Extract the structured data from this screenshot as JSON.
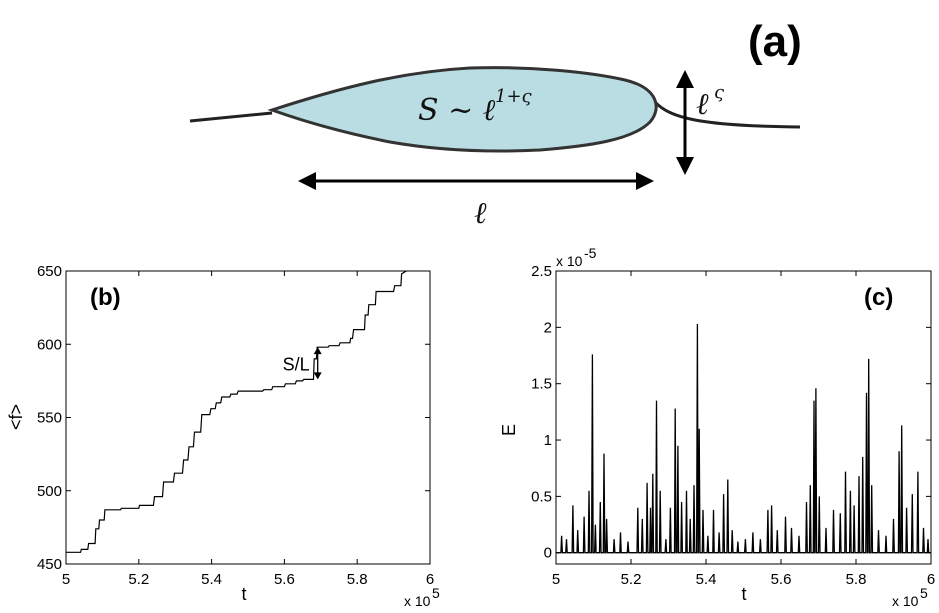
{
  "panel_a": {
    "label": "(a)",
    "area_formula": "S ~ ℓ",
    "area_exponent": "1+ς",
    "width_symbol": "ℓ",
    "width_exponent": "ς",
    "length_symbol": "ℓ",
    "blob_color": "#b9dde2"
  },
  "chart_data": [
    {
      "id": "b",
      "type": "line",
      "panel_label": "(b)",
      "xlabel": "t",
      "ylabel": "<f>",
      "x_multiplier_text": "x 10",
      "x_multiplier_exp": "5",
      "xlim": [
        5.0,
        6.0
      ],
      "ylim": [
        450,
        650
      ],
      "xticks": [
        5.0,
        5.2,
        5.4,
        5.6,
        5.8,
        6.0
      ],
      "xtick_labels": [
        "5",
        "5.2",
        "5.4",
        "5.6",
        "5.8",
        "6"
      ],
      "yticks": [
        450,
        500,
        550,
        600,
        650
      ],
      "ytick_labels": [
        "450",
        "500",
        "550",
        "600",
        "650"
      ],
      "annotation": "S/L",
      "annotation_x": 5.675,
      "annotation_range": [
        576,
        598
      ],
      "x": [
        5.0,
        5.04,
        5.042,
        5.06,
        5.062,
        5.08,
        5.082,
        5.09,
        5.092,
        5.105,
        5.107,
        5.15,
        5.152,
        5.2,
        5.202,
        5.24,
        5.243,
        5.265,
        5.268,
        5.295,
        5.298,
        5.32,
        5.323,
        5.335,
        5.338,
        5.35,
        5.353,
        5.37,
        5.373,
        5.395,
        5.398,
        5.41,
        5.413,
        5.425,
        5.428,
        5.45,
        5.453,
        5.47,
        5.473,
        5.54,
        5.543,
        5.565,
        5.568,
        5.6,
        5.603,
        5.63,
        5.633,
        5.65,
        5.653,
        5.68,
        5.682,
        5.688,
        5.69,
        5.72,
        5.723,
        5.75,
        5.753,
        5.78,
        5.782,
        5.787,
        5.79,
        5.82,
        5.822,
        5.83,
        5.832,
        5.85,
        5.852,
        5.9,
        5.903,
        5.92,
        5.922,
        5.935
      ],
      "y": [
        458,
        458,
        460,
        460,
        464,
        464,
        474,
        474,
        480,
        480,
        487,
        487,
        488,
        488,
        490,
        490,
        496,
        496,
        506,
        506,
        512,
        512,
        521,
        521,
        530,
        530,
        540,
        540,
        552,
        552,
        556,
        556,
        560,
        560,
        564,
        564,
        566,
        566,
        568,
        568,
        569,
        569,
        571,
        571,
        573,
        573,
        575,
        575,
        576,
        576,
        590,
        590,
        598,
        598,
        599,
        599,
        601,
        601,
        604,
        604,
        610,
        610,
        620,
        620,
        627,
        627,
        636,
        636,
        640,
        640,
        648,
        652
      ]
    },
    {
      "id": "c",
      "type": "line",
      "panel_label": "(c)",
      "xlabel": "t",
      "ylabel": "E",
      "x_multiplier_text": "x 10",
      "x_multiplier_exp": "5",
      "y_multiplier_text": "x 10",
      "y_multiplier_exp": "-5",
      "xlim": [
        5.0,
        6.0
      ],
      "ylim": [
        -0.1,
        2.5
      ],
      "xticks": [
        5.0,
        5.2,
        5.4,
        5.6,
        5.8,
        6.0
      ],
      "xtick_labels": [
        "5",
        "5.2",
        "5.4",
        "5.6",
        "5.8",
        "6"
      ],
      "yticks": [
        0,
        0.5,
        1.0,
        1.5,
        2.0,
        2.5
      ],
      "ytick_labels": [
        "0",
        "0.5",
        "1",
        "1.5",
        "2",
        "2.5"
      ],
      "peaks": [
        {
          "t": 5.015,
          "E": 0.15
        },
        {
          "t": 5.028,
          "E": 0.12
        },
        {
          "t": 5.045,
          "E": 0.42
        },
        {
          "t": 5.058,
          "E": 0.2
        },
        {
          "t": 5.075,
          "E": 0.32
        },
        {
          "t": 5.088,
          "E": 0.55
        },
        {
          "t": 5.097,
          "E": 1.76
        },
        {
          "t": 5.105,
          "E": 0.25
        },
        {
          "t": 5.118,
          "E": 0.45
        },
        {
          "t": 5.128,
          "E": 0.88
        },
        {
          "t": 5.135,
          "E": 0.3
        },
        {
          "t": 5.155,
          "E": 0.12
        },
        {
          "t": 5.172,
          "E": 0.18
        },
        {
          "t": 5.192,
          "E": 0.1
        },
        {
          "t": 5.218,
          "E": 0.4
        },
        {
          "t": 5.23,
          "E": 0.3
        },
        {
          "t": 5.243,
          "E": 0.62
        },
        {
          "t": 5.252,
          "E": 0.4
        },
        {
          "t": 5.258,
          "E": 0.7
        },
        {
          "t": 5.268,
          "E": 1.35
        },
        {
          "t": 5.278,
          "E": 0.55
        },
        {
          "t": 5.293,
          "E": 0.12
        },
        {
          "t": 5.305,
          "E": 0.4
        },
        {
          "t": 5.318,
          "E": 1.28
        },
        {
          "t": 5.325,
          "E": 0.95
        },
        {
          "t": 5.335,
          "E": 0.45
        },
        {
          "t": 5.348,
          "E": 0.55
        },
        {
          "t": 5.358,
          "E": 0.3
        },
        {
          "t": 5.368,
          "E": 0.6
        },
        {
          "t": 5.377,
          "E": 2.03
        },
        {
          "t": 5.382,
          "E": 1.1
        },
        {
          "t": 5.392,
          "E": 0.38
        },
        {
          "t": 5.405,
          "E": 0.15
        },
        {
          "t": 5.42,
          "E": 0.38
        },
        {
          "t": 5.435,
          "E": 0.18
        },
        {
          "t": 5.447,
          "E": 0.52
        },
        {
          "t": 5.458,
          "E": 0.65
        },
        {
          "t": 5.47,
          "E": 0.2
        },
        {
          "t": 5.485,
          "E": 0.1
        },
        {
          "t": 5.505,
          "E": 0.12
        },
        {
          "t": 5.525,
          "E": 0.18
        },
        {
          "t": 5.545,
          "E": 0.12
        },
        {
          "t": 5.565,
          "E": 0.38
        },
        {
          "t": 5.575,
          "E": 0.42
        },
        {
          "t": 5.59,
          "E": 0.2
        },
        {
          "t": 5.612,
          "E": 0.32
        },
        {
          "t": 5.628,
          "E": 0.22
        },
        {
          "t": 5.648,
          "E": 0.15
        },
        {
          "t": 5.668,
          "E": 0.45
        },
        {
          "t": 5.678,
          "E": 0.6
        },
        {
          "t": 5.688,
          "E": 1.35
        },
        {
          "t": 5.693,
          "E": 1.46
        },
        {
          "t": 5.702,
          "E": 0.5
        },
        {
          "t": 5.72,
          "E": 0.22
        },
        {
          "t": 5.74,
          "E": 0.38
        },
        {
          "t": 5.758,
          "E": 0.35
        },
        {
          "t": 5.772,
          "E": 0.72
        },
        {
          "t": 5.785,
          "E": 0.55
        },
        {
          "t": 5.795,
          "E": 0.42
        },
        {
          "t": 5.808,
          "E": 0.68
        },
        {
          "t": 5.818,
          "E": 0.85
        },
        {
          "t": 5.828,
          "E": 1.42
        },
        {
          "t": 5.834,
          "E": 1.72
        },
        {
          "t": 5.842,
          "E": 0.6
        },
        {
          "t": 5.86,
          "E": 0.2
        },
        {
          "t": 5.88,
          "E": 0.15
        },
        {
          "t": 5.9,
          "E": 0.3
        },
        {
          "t": 5.915,
          "E": 0.9
        },
        {
          "t": 5.922,
          "E": 1.13
        },
        {
          "t": 5.935,
          "E": 0.4
        },
        {
          "t": 5.95,
          "E": 0.52
        },
        {
          "t": 5.965,
          "E": 0.72
        },
        {
          "t": 5.98,
          "E": 0.22
        },
        {
          "t": 5.992,
          "E": 0.12
        }
      ]
    }
  ]
}
